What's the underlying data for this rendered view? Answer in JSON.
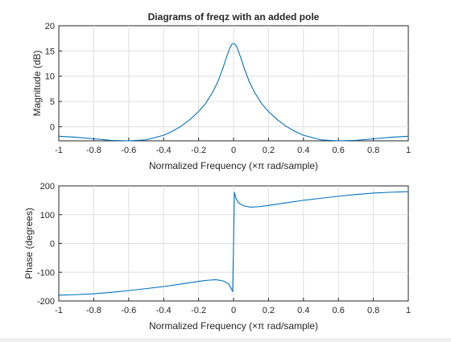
{
  "chart_data": [
    {
      "type": "line",
      "title": "Diagrams of freqz with an added pole",
      "xlabel": "Normalized Frequency  (×π rad/sample)",
      "ylabel": "Magnitude (dB)",
      "xlim": [
        -1,
        1
      ],
      "ylim": [
        -2.8,
        20
      ],
      "xticks": [
        -1,
        -0.8,
        -0.6,
        -0.4,
        -0.2,
        0,
        0.2,
        0.4,
        0.6,
        0.8,
        1
      ],
      "xtick_labels": [
        "-1",
        "-0.8",
        "-0.6",
        "-0.4",
        "-0.2",
        "0",
        "0.2",
        "0.4",
        "0.6",
        "0.8",
        "1"
      ],
      "yticks": [
        0,
        5,
        10,
        15,
        20
      ],
      "ytick_labels": [
        "0",
        "5",
        "10",
        "15",
        "20"
      ],
      "grid": true,
      "color": "#0072bd",
      "series": [
        {
          "name": "Magnitude",
          "x": [
            -1,
            -0.9,
            -0.8,
            -0.7,
            -0.6,
            -0.5,
            -0.4,
            -0.35,
            -0.3,
            -0.25,
            -0.2,
            -0.16,
            -0.12,
            -0.09,
            -0.06,
            -0.04,
            -0.02,
            -0.01,
            0,
            0.01,
            0.02,
            0.04,
            0.06,
            0.09,
            0.12,
            0.16,
            0.2,
            0.25,
            0.3,
            0.35,
            0.4,
            0.5,
            0.6,
            0.7,
            0.8,
            0.9,
            1
          ],
          "y": [
            -1.9,
            -2.1,
            -2.4,
            -2.7,
            -2.8,
            -2.6,
            -1.7,
            -0.9,
            0.1,
            1.4,
            3.0,
            4.6,
            6.8,
            8.9,
            11.7,
            13.8,
            15.7,
            16.3,
            16.5,
            16.3,
            15.7,
            13.8,
            11.7,
            8.9,
            6.8,
            4.6,
            3.0,
            1.4,
            0.1,
            -0.9,
            -1.7,
            -2.6,
            -2.8,
            -2.7,
            -2.4,
            -2.1,
            -1.9
          ]
        }
      ]
    },
    {
      "type": "line",
      "title": "",
      "xlabel": "Normalized Frequency  (×π rad/sample)",
      "ylabel": "Phase (degrees)",
      "xlim": [
        -1,
        1
      ],
      "ylim": [
        -200,
        200
      ],
      "xticks": [
        -1,
        -0.8,
        -0.6,
        -0.4,
        -0.2,
        0,
        0.2,
        0.4,
        0.6,
        0.8,
        1
      ],
      "xtick_labels": [
        "-1",
        "-0.8",
        "-0.6",
        "-0.4",
        "-0.2",
        "0",
        "0.2",
        "0.4",
        "0.6",
        "0.8",
        "1"
      ],
      "yticks": [
        -200,
        -100,
        0,
        100,
        200
      ],
      "ytick_labels": [
        "-200",
        "-100",
        "0",
        "100",
        "200"
      ],
      "grid": true,
      "color": "#0072bd",
      "series": [
        {
          "name": "Phase",
          "x": [
            -1,
            -0.9,
            -0.8,
            -0.7,
            -0.6,
            -0.5,
            -0.4,
            -0.3,
            -0.2,
            -0.15,
            -0.1,
            -0.06,
            -0.03,
            -0.015,
            -0.005,
            0,
            0.005,
            0.015,
            0.03,
            0.06,
            0.1,
            0.15,
            0.2,
            0.3,
            0.4,
            0.5,
            0.6,
            0.7,
            0.8,
            0.9,
            1
          ],
          "y": [
            -180,
            -178,
            -175,
            -170,
            -164,
            -157,
            -150,
            -141,
            -132,
            -128,
            -126,
            -130,
            -140,
            -155,
            -168,
            0,
            178,
            155,
            140,
            130,
            126,
            128,
            132,
            141,
            150,
            157,
            164,
            170,
            175,
            178,
            180
          ]
        }
      ]
    }
  ]
}
